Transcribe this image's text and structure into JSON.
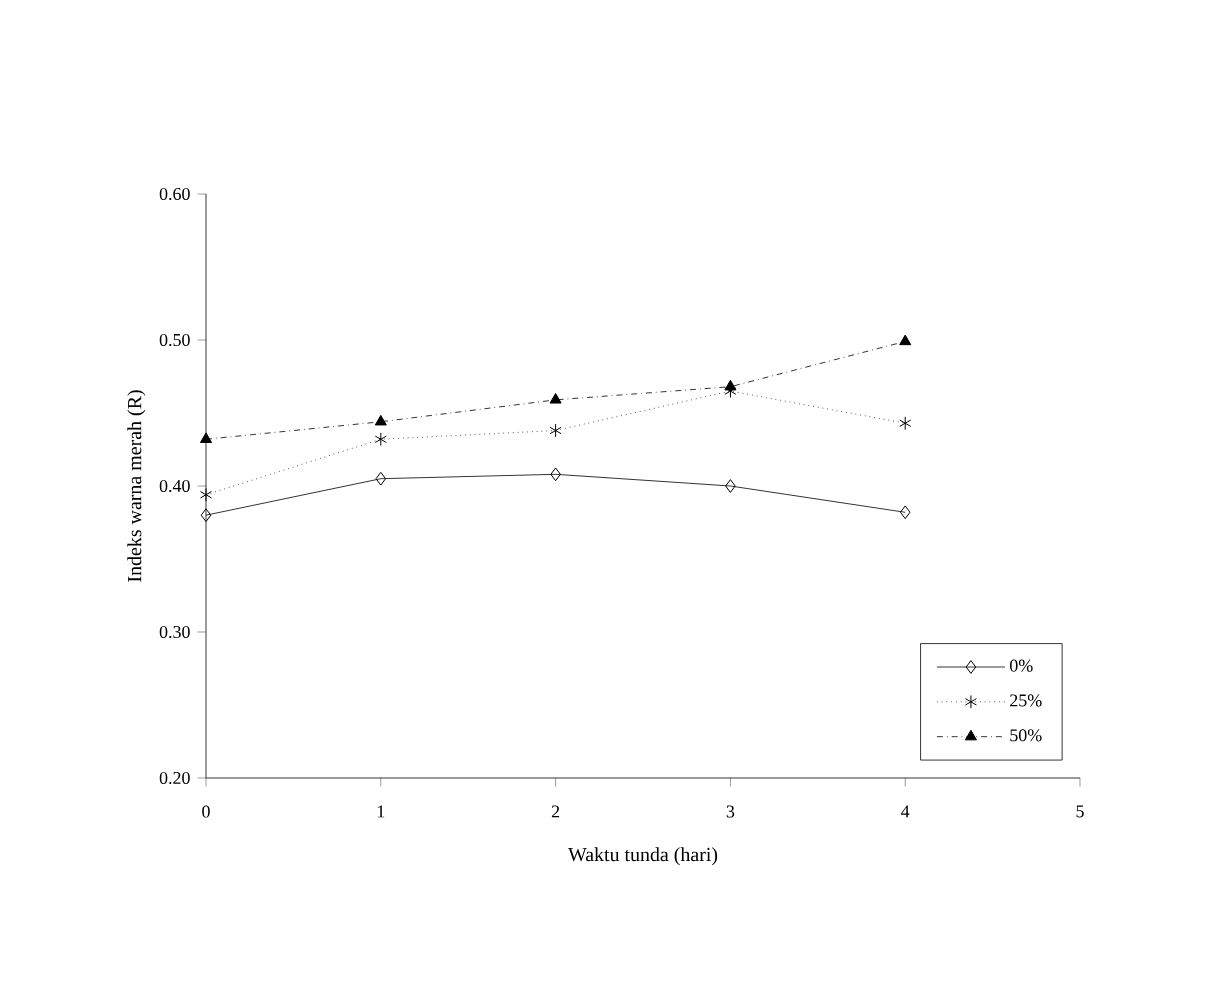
{
  "chart_data": {
    "type": "line",
    "xlabel": "Waktu tunda (hari)",
    "ylabel": "Indeks warna merah (R)",
    "x": [
      0,
      1,
      2,
      3,
      4
    ],
    "series": [
      {
        "name": "0%",
        "color": "#000000",
        "marker": "diamond",
        "line_style": "solid",
        "values": [
          0.38,
          0.405,
          0.408,
          0.4,
          0.382
        ]
      },
      {
        "name": "25%",
        "color": "#000000",
        "marker": "cross",
        "line_style": "dotted",
        "values": [
          0.394,
          0.432,
          0.438,
          0.465,
          0.443
        ]
      },
      {
        "name": "50%",
        "color": "#000000",
        "marker": "triangle",
        "line_style": "dashed",
        "values": [
          0.432,
          0.444,
          0.459,
          0.468,
          0.499
        ]
      }
    ],
    "xlim": [
      0,
      5
    ],
    "xticks": [
      0,
      1,
      2,
      3,
      4,
      5
    ],
    "ylim": [
      0.2,
      0.6
    ],
    "yticks": [
      {
        "value": 0.2,
        "label": "0.20"
      },
      {
        "value": 0.3,
        "label": "0.30"
      },
      {
        "value": 0.4,
        "label": "0.40"
      },
      {
        "value": 0.5,
        "label": "0.50"
      },
      {
        "value": 0.6,
        "label": "0.60"
      }
    ],
    "grid": false,
    "legend": "bottom right"
  }
}
